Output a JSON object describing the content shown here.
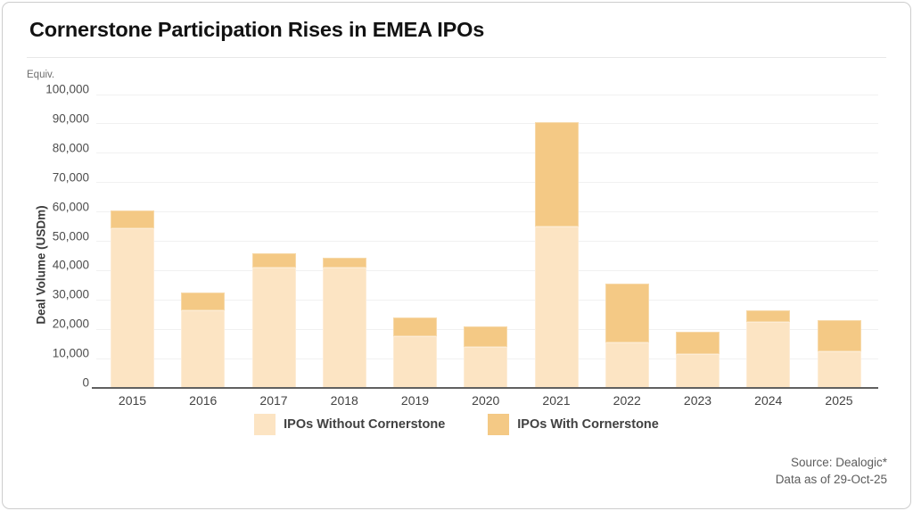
{
  "title": "Cornerstone Participation Rises in EMEA IPOs",
  "y_axis": {
    "unit_label": "Equiv.",
    "title": "Deal Volume (USDm)"
  },
  "chart_data": {
    "type": "bar",
    "stacked": true,
    "title": "Cornerstone Participation Rises in EMEA IPOs",
    "ylabel": "Deal Volume (USDm)",
    "ylabel_unit_note": "Equiv.",
    "categories": [
      "2015",
      "2016",
      "2017",
      "2018",
      "2019",
      "2020",
      "2021",
      "2022",
      "2023",
      "2024",
      "2025"
    ],
    "series": [
      {
        "name": "IPOs Without Cornerstone",
        "color": "#FCE4C3",
        "values": [
          54500,
          26500,
          41000,
          41000,
          17500,
          14000,
          55000,
          15500,
          11500,
          22500,
          12500
        ]
      },
      {
        "name": "IPOs With Cornerstone",
        "color": "#F4C985",
        "values": [
          6000,
          6000,
          5000,
          3500,
          6500,
          7000,
          35500,
          20000,
          7500,
          4000,
          10500
        ]
      }
    ],
    "ylim": [
      0,
      100000
    ],
    "ytick_step": 10000,
    "ytick_labels": [
      "0",
      "10,000",
      "20,000",
      "30,000",
      "40,000",
      "50,000",
      "60,000",
      "70,000",
      "80,000",
      "90,000",
      "100,000"
    ],
    "grid": true,
    "legend_position": "bottom"
  },
  "footer": {
    "source": "Source: Dealogic*",
    "data_as_of": "Data as of 29-Oct-25"
  }
}
